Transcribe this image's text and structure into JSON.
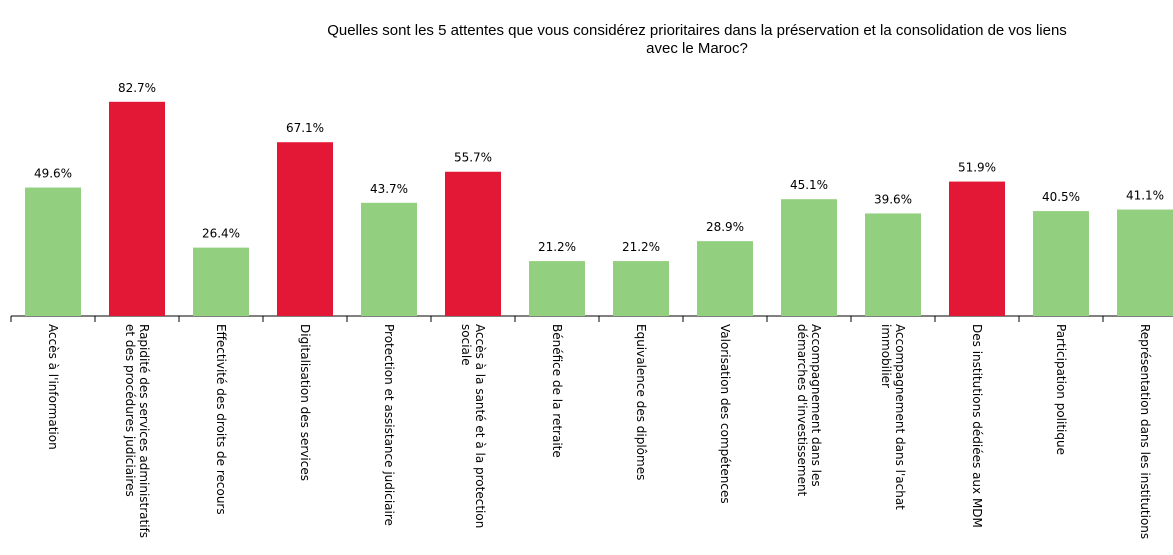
{
  "chart_data": {
    "type": "bar",
    "title": "Quelles sont les 5 attentes que vous considérez prioritaires dans la préservation et la consolidation de vos liens\navec le Maroc?",
    "categories": [
      "Accès à l'information",
      "Rapidité des services administratifs\net des procédures judiciaires",
      "Effectivité des droits de recours",
      "Digitalisation des services",
      "Protection et assistance judiciaire",
      "Accès à la santé et à la protection\nsociale",
      "Bénéfice de la retraite",
      "Equivalence des diplômes",
      "Valorisation des compétences",
      "Accompagnement dans les\ndémarches d'investissement",
      "Accompagnement dans l'achat\nimmobilier",
      "Des institutions dédiées aux MDM",
      "Participation politique",
      "Représentation dans les institutions"
    ],
    "values": [
      49.6,
      82.7,
      26.4,
      67.1,
      43.7,
      55.7,
      21.2,
      21.2,
      28.9,
      45.1,
      39.6,
      51.9,
      40.5,
      41.1
    ],
    "value_labels": [
      "49.6%",
      "82.7%",
      "26.4%",
      "67.1%",
      "43.7%",
      "55.7%",
      "21.2%",
      "21.2%",
      "28.9%",
      "45.1%",
      "39.6%",
      "51.9%",
      "40.5%",
      "41.1%"
    ],
    "colors": [
      "#92d07f",
      "#e31837",
      "#92d07f",
      "#e31837",
      "#92d07f",
      "#e31837",
      "#92d07f",
      "#92d07f",
      "#92d07f",
      "#92d07f",
      "#92d07f",
      "#e31837",
      "#92d07f",
      "#92d07f"
    ]
  }
}
